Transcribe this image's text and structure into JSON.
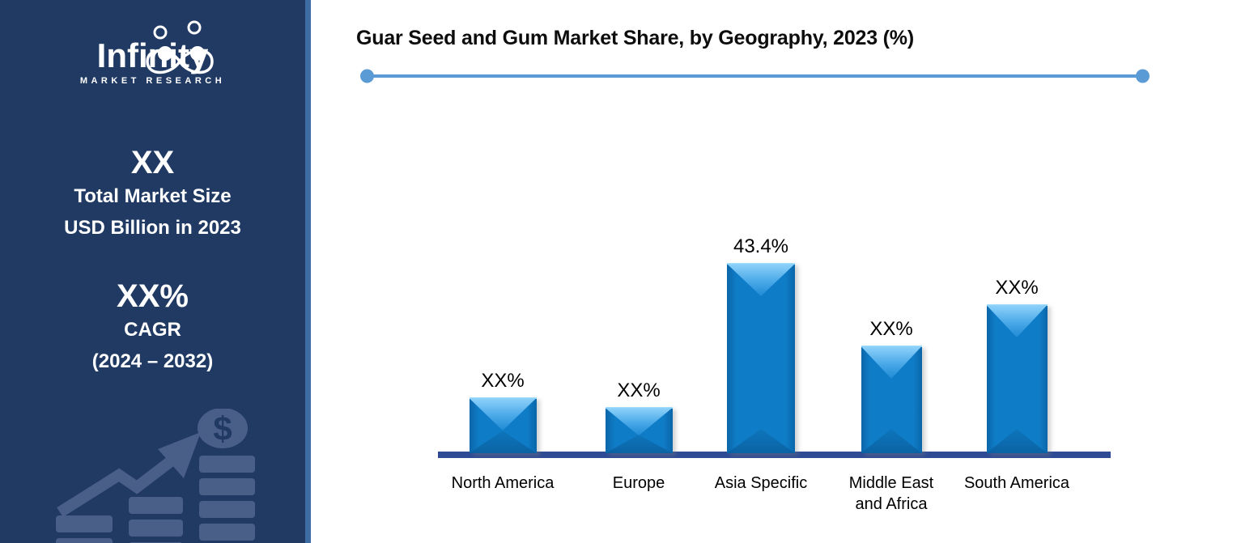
{
  "sidebar": {
    "logo": {
      "word": "Infinity",
      "subtitle": "MARKET RESEARCH"
    },
    "stat1": {
      "value": "XX",
      "line1": "Total Market Size",
      "line2": "USD Billion in 2023"
    },
    "stat2": {
      "value": "XX%",
      "line1": "CAGR",
      "line2": "(2024 – 2032)"
    },
    "decor": {
      "dollar_glyph": "$"
    },
    "colors": {
      "background": "#213A63",
      "accent_border": "#3E6DA3",
      "decor_fill": "#4A5F88",
      "text": "#FFFFFF"
    }
  },
  "chart": {
    "title": "Guar Seed and Gum Market Share, by Geography, 2023 (%)",
    "colors": {
      "divider": "#5B9BD5",
      "axis": "#2E4B94",
      "bar_base": "#0F7CC7",
      "bar_edge_dark": "#0B66A9",
      "label_text": "#000000"
    }
  },
  "chart_data": {
    "type": "bar",
    "title": "Guar Seed and Gum Market Share, by Geography, 2023 (%)",
    "categories": [
      "North America",
      "Europe",
      "Asia Specific",
      "Middle East and Africa",
      "South America"
    ],
    "tick_labels": [
      "North America",
      "Europe",
      "Asia Specific",
      "Middle East\nand Africa",
      "South America"
    ],
    "values": [
      12.7,
      10.5,
      43.4,
      24.6,
      34.0
    ],
    "labels": [
      "XX%",
      "XX%",
      "43.4%",
      "XX%",
      "XX%"
    ],
    "values_are_estimates_except_asia": true,
    "xlabel": "",
    "ylabel": "",
    "ylim": [
      0,
      50
    ],
    "grid": false,
    "legend": false
  }
}
